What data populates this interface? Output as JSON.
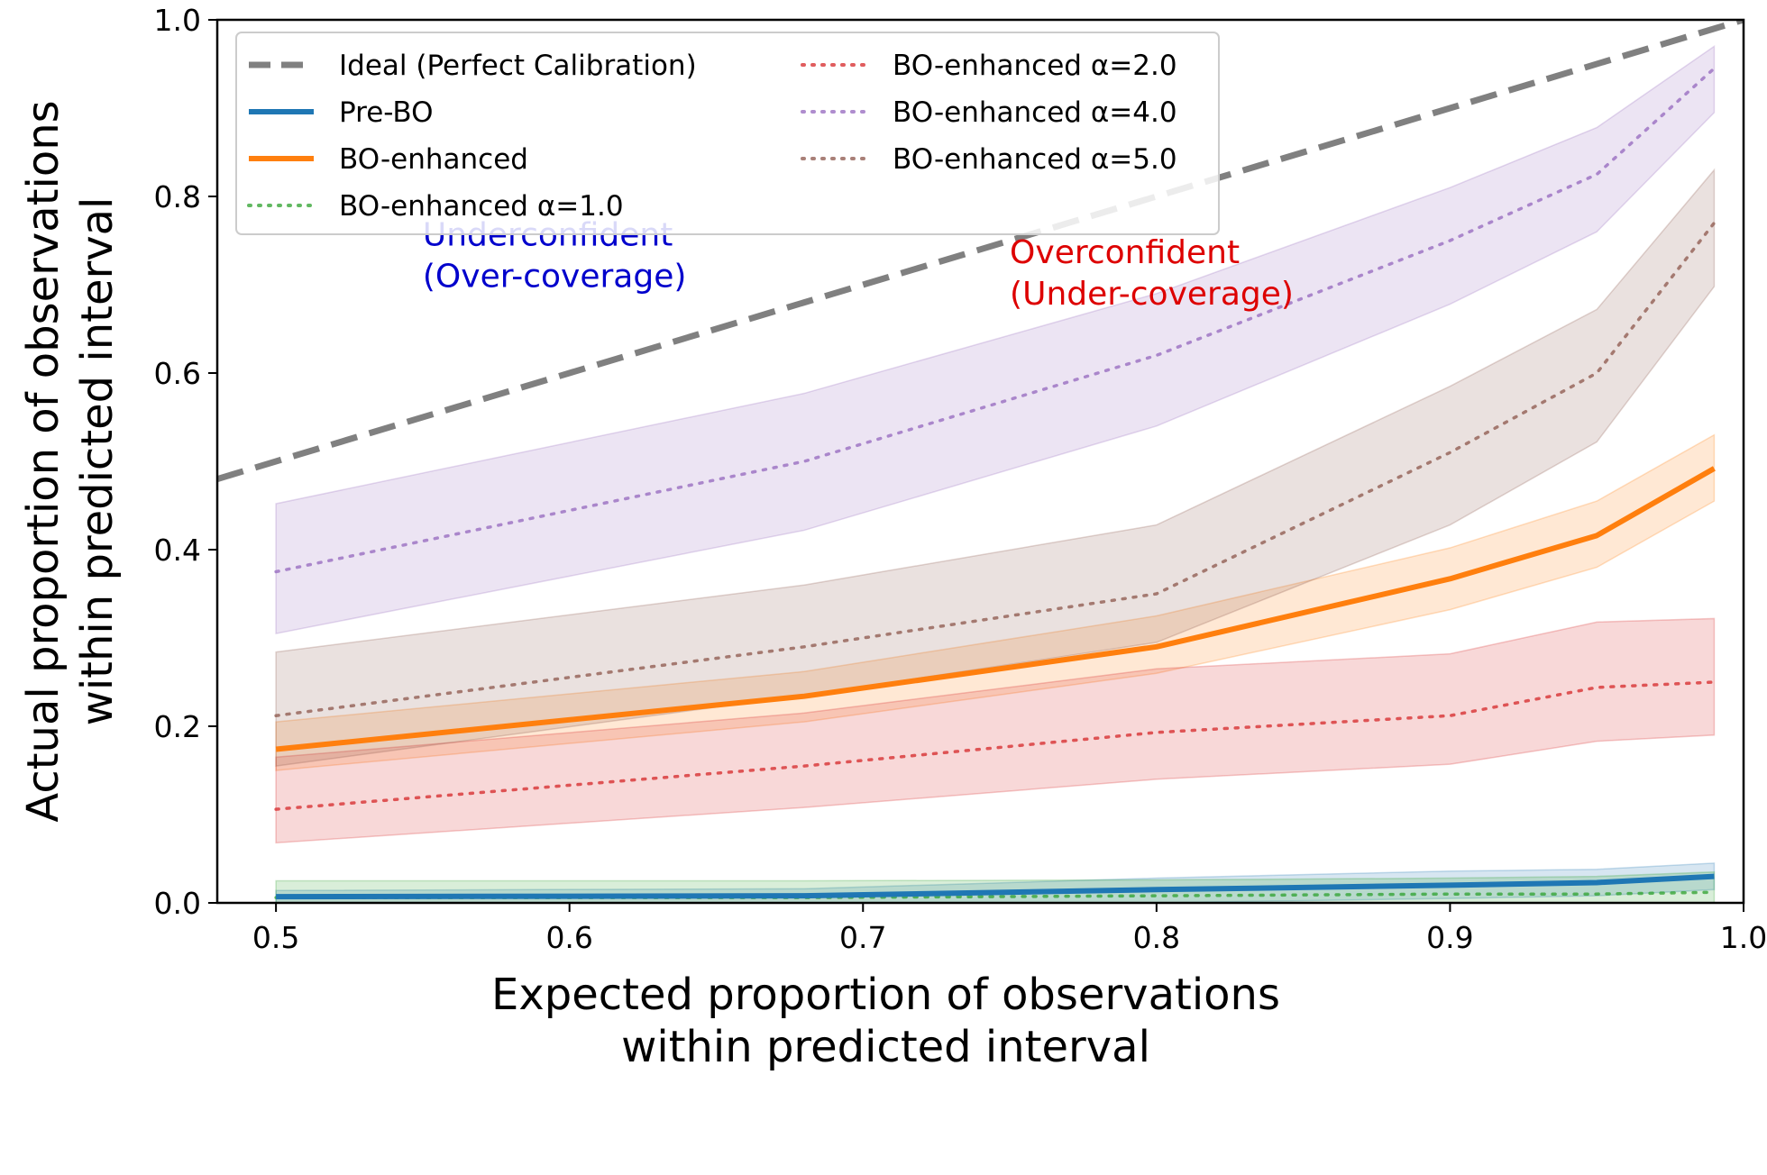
{
  "chart_data": {
    "type": "line",
    "xlabel": [
      "Expected proportion of observations",
      "within predicted interval"
    ],
    "ylabel": [
      "Actual proportion of observations",
      "within predicted interval"
    ],
    "xlim": [
      0.48,
      1.0
    ],
    "ylim": [
      0.0,
      1.0
    ],
    "xticks": [
      0.5,
      0.6,
      0.7,
      0.8,
      0.9,
      1.0
    ],
    "xtick_labels": [
      "0.5",
      "0.6",
      "0.7",
      "0.8",
      "0.9",
      "1.0"
    ],
    "yticks": [
      0.0,
      0.2,
      0.4,
      0.6,
      0.8,
      1.0
    ],
    "ytick_labels": [
      "0.0",
      "0.2",
      "0.4",
      "0.6",
      "0.8",
      "1.0"
    ],
    "legend_position": "top-left",
    "ideal": {
      "name": "Ideal (Perfect Calibration)",
      "x": [
        0.48,
        1.0
      ],
      "y": [
        0.48,
        1.0
      ],
      "color": "#808080",
      "style": "dashed"
    },
    "x": [
      0.5,
      0.68,
      0.8,
      0.9,
      0.95,
      0.99
    ],
    "series": [
      {
        "name": "Pre-BO",
        "color": "#1f77b4",
        "style": "solid",
        "values": [
          0.007,
          0.008,
          0.015,
          0.02,
          0.023,
          0.03
        ],
        "lower": [
          0.0,
          0.0,
          0.0,
          0.005,
          0.008,
          0.015
        ],
        "upper": [
          0.014,
          0.016,
          0.028,
          0.036,
          0.038,
          0.045
        ]
      },
      {
        "name": "BO-enhanced",
        "color": "#ff7f0e",
        "style": "solid",
        "values": [
          0.174,
          0.234,
          0.29,
          0.367,
          0.416,
          0.492
        ],
        "lower": [
          0.15,
          0.205,
          0.26,
          0.332,
          0.38,
          0.455
        ],
        "upper": [
          0.205,
          0.262,
          0.325,
          0.402,
          0.455,
          0.53
        ]
      },
      {
        "name": "BO-enhanced α=1.0",
        "color": "#2ca02c",
        "style": "dotted",
        "values": [
          0.006,
          0.006,
          0.008,
          0.01,
          0.01,
          0.012
        ],
        "lower": [
          0.0,
          0.0,
          0.0,
          0.0,
          0.0,
          0.0
        ],
        "upper": [
          0.025,
          0.025,
          0.026,
          0.028,
          0.03,
          0.035
        ]
      },
      {
        "name": "BO-enhanced α=2.0",
        "color": "#d62728",
        "style": "dotted",
        "values": [
          0.106,
          0.155,
          0.193,
          0.212,
          0.244,
          0.25
        ],
        "lower": [
          0.068,
          0.108,
          0.14,
          0.157,
          0.183,
          0.19
        ],
        "upper": [
          0.165,
          0.215,
          0.265,
          0.282,
          0.318,
          0.322
        ]
      },
      {
        "name": "BO-enhanced α=4.0",
        "color": "#9467bd",
        "style": "dotted",
        "values": [
          0.375,
          0.5,
          0.62,
          0.75,
          0.825,
          0.945
        ],
        "lower": [
          0.305,
          0.422,
          0.54,
          0.678,
          0.76,
          0.895
        ],
        "upper": [
          0.452,
          0.577,
          0.69,
          0.81,
          0.878,
          0.97
        ]
      },
      {
        "name": "BO-enhanced α=5.0",
        "color": "#8c564b",
        "style": "dotted",
        "values": [
          0.212,
          0.29,
          0.35,
          0.51,
          0.6,
          0.77
        ],
        "lower": [
          0.155,
          0.235,
          0.295,
          0.428,
          0.522,
          0.698
        ],
        "upper": [
          0.284,
          0.36,
          0.428,
          0.585,
          0.672,
          0.83
        ]
      }
    ],
    "annotations": [
      {
        "lines": [
          "Underconfident",
          "(Over-coverage)"
        ],
        "color": "#0000cc",
        "x": 0.55,
        "y": 0.73
      },
      {
        "lines": [
          "Overconfident",
          "(Under-coverage)"
        ],
        "color": "#dd0000",
        "x": 0.75,
        "y": 0.71
      }
    ]
  }
}
